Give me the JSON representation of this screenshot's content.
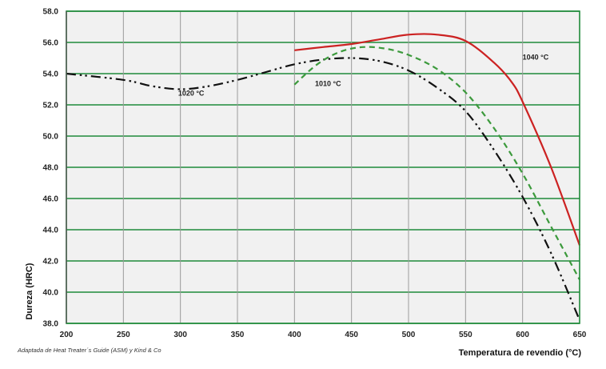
{
  "chart_data": {
    "type": "line",
    "xlabel": "Temperatura de revendio (°C)",
    "ylabel": "Dureza (HRC)",
    "source_note": "Adaptada de Heat Treater´s Guide (ASM) y Kind & Co",
    "xlim": [
      200,
      650
    ],
    "ylim": [
      38,
      58
    ],
    "x_ticks": [
      "200",
      "250",
      "300",
      "350",
      "400",
      "450",
      "500",
      "550",
      "600",
      "650"
    ],
    "y_ticks": [
      "38.0",
      "40.0",
      "42.0",
      "44.0",
      "46.0",
      "48.0",
      "50.0",
      "52.0",
      "54.0",
      "56.0",
      "58.0"
    ],
    "grid": true,
    "colors": {
      "grid": "#1f8a3a",
      "plot_bg": "#f1f1f1",
      "axis": "#222222"
    },
    "series": [
      {
        "name": "1020 °C",
        "color": "#111111",
        "dash": "dash-dot-dot",
        "x": [
          200,
          250,
          275,
          300,
          325,
          350,
          375,
          400,
          425,
          450,
          475,
          500,
          525,
          550,
          575,
          600,
          625,
          650
        ],
        "y": [
          54.0,
          53.6,
          53.2,
          53.0,
          53.2,
          53.6,
          54.1,
          54.6,
          54.9,
          55.0,
          54.8,
          54.2,
          53.1,
          51.6,
          49.1,
          46.1,
          42.5,
          38.2
        ]
      },
      {
        "name": "1010 °C",
        "color": "#3c9a3c",
        "dash": "dash",
        "x": [
          400,
          420,
          440,
          460,
          480,
          500,
          525,
          550,
          575,
          600,
          625,
          650
        ],
        "y": [
          53.3,
          54.6,
          55.4,
          55.7,
          55.6,
          55.2,
          54.3,
          52.8,
          50.5,
          47.6,
          44.2,
          40.8
        ]
      },
      {
        "name": "1040 °C",
        "color": "#cc2222",
        "dash": "solid",
        "x": [
          400,
          425,
          450,
          475,
          500,
          525,
          550,
          575,
          590,
          600,
          625,
          650
        ],
        "y": [
          55.5,
          55.7,
          55.9,
          56.2,
          56.5,
          56.5,
          56.1,
          54.7,
          53.5,
          52.2,
          48.0,
          43.0
        ]
      }
    ],
    "annotations": [
      {
        "text": "1020 °C",
        "x": 298,
        "y": 52.6
      },
      {
        "text": "1010 °C",
        "x": 418,
        "y": 53.2
      },
      {
        "text": "1040 °C",
        "x": 600,
        "y": 54.9
      }
    ]
  }
}
